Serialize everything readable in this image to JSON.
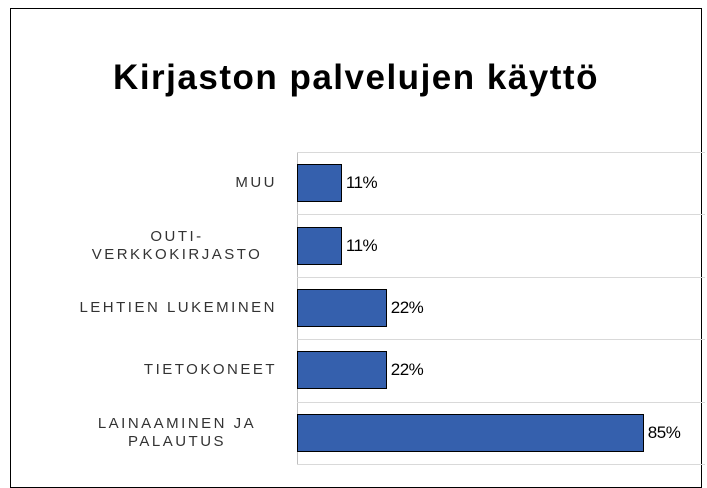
{
  "chart_data": {
    "type": "bar",
    "orientation": "horizontal",
    "title": "Kirjaston palvelujen käyttö",
    "categories": [
      "MUU",
      "OUTI-VERKKOKIRJASTO",
      "LEHTIEN LUKEMINEN",
      "TIETOKONEET",
      "LAINAAMINEN JA PALAUTUS"
    ],
    "values": [
      11,
      11,
      22,
      22,
      85
    ],
    "value_labels": [
      "11%",
      "11%",
      "22%",
      "22%",
      "85%"
    ],
    "color": "#3560ad",
    "xlim": [
      0,
      100
    ],
    "grid": true
  }
}
